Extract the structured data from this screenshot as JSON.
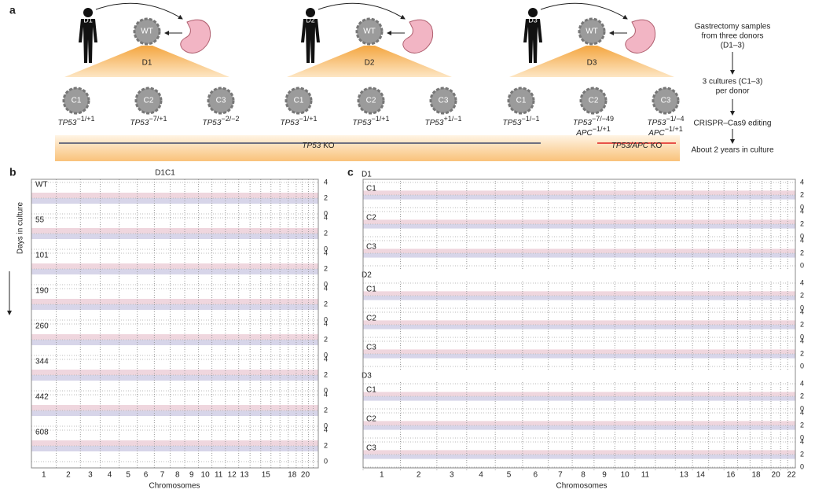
{
  "panel_a": {
    "label": "a",
    "donors": [
      {
        "figure_label": "D1",
        "organoid": "WT",
        "name": "D1",
        "cultures": [
          {
            "name": "C1",
            "lines": [
              {
                "gene": "TP53",
                "sup": "−1/+1"
              }
            ]
          },
          {
            "name": "C2",
            "lines": [
              {
                "gene": "TP53",
                "sup": "−7/+1"
              }
            ]
          },
          {
            "name": "C3",
            "lines": [
              {
                "gene": "TP53",
                "sup": "−2/−2"
              }
            ]
          }
        ]
      },
      {
        "figure_label": "D2",
        "organoid": "WT",
        "name": "D2",
        "cultures": [
          {
            "name": "C1",
            "lines": [
              {
                "gene": "TP53",
                "sup": "−1/+1"
              }
            ]
          },
          {
            "name": "C2",
            "lines": [
              {
                "gene": "TP53",
                "sup": "−1/+1"
              }
            ]
          },
          {
            "name": "C3",
            "lines": [
              {
                "gene": "TP53",
                "sup": "+1/−1"
              }
            ]
          }
        ]
      },
      {
        "figure_label": "D3",
        "organoid": "WT",
        "name": "D3",
        "cultures": [
          {
            "name": "C1",
            "lines": [
              {
                "gene": "TP53",
                "sup": "−1/−1"
              }
            ]
          },
          {
            "name": "C2",
            "lines": [
              {
                "gene": "TP53",
                "sup": "−7/−49"
              },
              {
                "gene": "APC",
                "sup": "−1/+1"
              }
            ]
          },
          {
            "name": "C3",
            "lines": [
              {
                "gene": "TP53",
                "sup": "−1/−4"
              },
              {
                "gene": "APC",
                "sup": "−1/+1"
              }
            ]
          }
        ]
      }
    ],
    "ko_labels": [
      {
        "gene": "TP53",
        "text": " KO"
      },
      {
        "gene": "TP53/APC",
        "text": " KO"
      }
    ],
    "steps": [
      [
        "Gastrectomy samples",
        "from three donors",
        "(D1–3)"
      ],
      [
        "3 cultures (C1–3)",
        "per donor"
      ],
      [
        "CRISPR–Cas9 editing"
      ],
      [
        "About 2 years in culture"
      ]
    ]
  },
  "panel_b": {
    "label": "b",
    "title": "D1C1",
    "timepoints": [
      "WT",
      "55",
      "101",
      "190",
      "260",
      "344",
      "442",
      "608"
    ],
    "y_axis_label": "Days in culture",
    "yticks": [
      4,
      2,
      0
    ],
    "x_axis_label": "Chromosomes",
    "chromosome_labels": [
      "1",
      "2",
      "3",
      "4",
      "5",
      "6",
      "7",
      "8",
      "9",
      "10",
      "11",
      "12",
      "13",
      "15",
      "18",
      "20"
    ]
  },
  "panel_c": {
    "label": "c",
    "donors": [
      {
        "name": "D1",
        "cultures": [
          "C1",
          "C2",
          "C3"
        ]
      },
      {
        "name": "D2",
        "cultures": [
          "C1",
          "C2",
          "C3"
        ]
      },
      {
        "name": "D3",
        "cultures": [
          "C1",
          "C2",
          "C3"
        ]
      }
    ],
    "yticks": [
      4,
      2,
      0
    ],
    "x_axis_label": "Chromosomes",
    "chromosome_labels": [
      "1",
      "2",
      "3",
      "4",
      "5",
      "6",
      "7",
      "8",
      "9",
      "10",
      "11",
      "13",
      "14",
      "16",
      "18",
      "20",
      "22"
    ]
  }
}
